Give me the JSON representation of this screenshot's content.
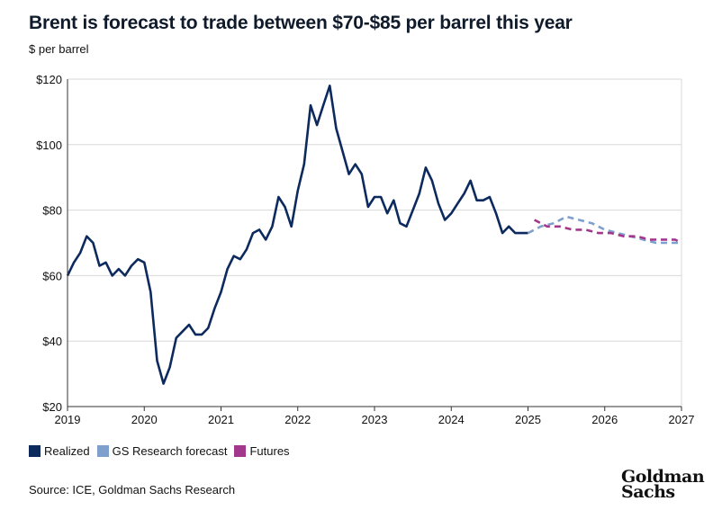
{
  "title": "Brent is forecast to trade between $70-$85 per barrel this year",
  "unit_label": "$ per barrel",
  "source": "Source: ICE, Goldman Sachs Research",
  "logo": {
    "line1": "Goldman",
    "line2": "Sachs"
  },
  "colors": {
    "realized": "#0d2a5e",
    "gs_forecast": "#7fa0cc",
    "futures": "#a2378c",
    "grid": "#d9d9d9",
    "axis": "#333333"
  },
  "chart_data": {
    "type": "line",
    "title": "Brent is forecast to trade between $70-$85 per barrel this year",
    "ylabel": "$ per barrel",
    "xlabel": "",
    "xlim": [
      2019,
      2027
    ],
    "ylim": [
      20,
      120
    ],
    "x_ticks": [
      2019,
      2020,
      2021,
      2022,
      2023,
      2024,
      2025,
      2026,
      2027
    ],
    "y_ticks": [
      20,
      40,
      60,
      80,
      100,
      120
    ],
    "y_tick_labels": [
      "$20",
      "$40",
      "$60",
      "$80",
      "$100",
      "$120"
    ],
    "legend_position": "bottom-left",
    "series": [
      {
        "name": "Realized",
        "style": "solid",
        "color": "#0d2a5e",
        "x": [
          2019.0,
          2019.083,
          2019.167,
          2019.25,
          2019.333,
          2019.417,
          2019.5,
          2019.583,
          2019.667,
          2019.75,
          2019.833,
          2019.917,
          2020.0,
          2020.083,
          2020.167,
          2020.25,
          2020.333,
          2020.417,
          2020.5,
          2020.583,
          2020.667,
          2020.75,
          2020.833,
          2020.917,
          2021.0,
          2021.083,
          2021.167,
          2021.25,
          2021.333,
          2021.417,
          2021.5,
          2021.583,
          2021.667,
          2021.75,
          2021.833,
          2021.917,
          2022.0,
          2022.083,
          2022.167,
          2022.25,
          2022.333,
          2022.417,
          2022.5,
          2022.583,
          2022.667,
          2022.75,
          2022.833,
          2022.917,
          2023.0,
          2023.083,
          2023.167,
          2023.25,
          2023.333,
          2023.417,
          2023.5,
          2023.583,
          2023.667,
          2023.75,
          2023.833,
          2023.917,
          2024.0,
          2024.083,
          2024.167,
          2024.25,
          2024.333,
          2024.417,
          2024.5,
          2024.583,
          2024.667,
          2024.75,
          2024.833,
          2024.917,
          2025.0
        ],
        "values": [
          60,
          64,
          67,
          72,
          70,
          63,
          64,
          60,
          62,
          60,
          63,
          65,
          64,
          55,
          34,
          27,
          32,
          41,
          43,
          45,
          42,
          42,
          44,
          50,
          55,
          62,
          66,
          65,
          68,
          73,
          74,
          71,
          75,
          84,
          81,
          75,
          86,
          94,
          112,
          106,
          112,
          118,
          105,
          98,
          91,
          94,
          91,
          81,
          84,
          84,
          79,
          83,
          76,
          75,
          80,
          85,
          93,
          89,
          82,
          77,
          79,
          82,
          85,
          89,
          83,
          83,
          84,
          79,
          73,
          75,
          73,
          73,
          73
        ]
      },
      {
        "name": "GS Research forecast",
        "style": "dashed",
        "color": "#7fa0cc",
        "x": [
          2025.0,
          2025.167,
          2025.333,
          2025.5,
          2025.667,
          2025.833,
          2026.0,
          2026.167,
          2026.333,
          2026.5,
          2026.667,
          2026.833,
          2027.0
        ],
        "values": [
          73,
          75,
          76,
          78,
          77,
          76,
          74,
          73,
          72,
          71,
          70,
          70,
          70
        ]
      },
      {
        "name": "Futures",
        "style": "dashed",
        "color": "#a2378c",
        "x": [
          2025.083,
          2025.25,
          2025.417,
          2025.583,
          2025.75,
          2025.917,
          2026.083,
          2026.25,
          2026.417,
          2026.583,
          2026.75,
          2026.917,
          2027.0
        ],
        "values": [
          77,
          75,
          75,
          74,
          74,
          73,
          73,
          72,
          72,
          71,
          71,
          71,
          70
        ]
      }
    ]
  }
}
